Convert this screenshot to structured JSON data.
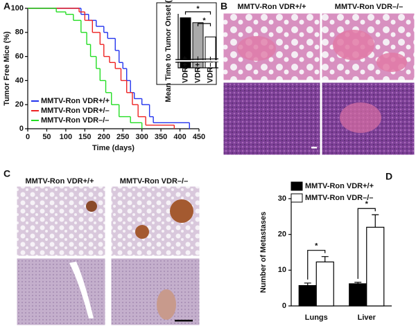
{
  "figure": {
    "panel_labels": [
      "A",
      "B",
      "C",
      "D"
    ],
    "panel_b_titles": [
      "MMTV-Ron VDR+/+",
      "MMTV-Ron VDR–/–"
    ],
    "panel_c_titles": [
      "MMTV-Ron VDR+/+",
      "MMTV-Ron VDR–/–"
    ]
  },
  "chart_data": [
    {
      "type": "line",
      "drawstyle": "steps-post",
      "xlabel": "Time (days)",
      "ylabel": "Tumor Free Mice (%)",
      "xlim": [
        0,
        450
      ],
      "ylim": [
        0,
        100
      ],
      "xticks": [
        0,
        50,
        100,
        150,
        200,
        250,
        300,
        350,
        400,
        450
      ],
      "yticks": [
        0,
        20,
        40,
        60,
        80,
        100
      ],
      "legend": "lower left",
      "series": [
        {
          "name": "MMTV-Ron VDR+/+",
          "color": "#2233ee",
          "x": [
            0,
            140,
            160,
            180,
            200,
            210,
            230,
            240,
            250,
            260,
            270,
            280,
            300,
            320,
            330,
            425
          ],
          "values": [
            100,
            95,
            90,
            85,
            80,
            75,
            65,
            55,
            50,
            40,
            30,
            25,
            20,
            10,
            5,
            0
          ]
        },
        {
          "name": "MMTV-Ron VDR+/–",
          "color": "#ee2222",
          "x": [
            0,
            135,
            150,
            170,
            190,
            200,
            215,
            230,
            245,
            260,
            275,
            290,
            310,
            385
          ],
          "values": [
            100,
            97,
            90,
            80,
            70,
            60,
            55,
            50,
            40,
            30,
            20,
            10,
            3,
            0
          ]
        },
        {
          "name": "MMTV-Ron VDR–/–",
          "color": "#22dd22",
          "x": [
            0,
            75,
            100,
            120,
            140,
            155,
            165,
            180,
            190,
            205,
            220,
            240,
            270,
            300
          ],
          "values": [
            100,
            97,
            95,
            90,
            80,
            70,
            60,
            50,
            40,
            30,
            20,
            10,
            5,
            0
          ]
        }
      ]
    },
    {
      "type": "bar",
      "ylabel": "Mean Time to Tumor Onset (Days)",
      "categories": [
        "VDR+/+",
        "VDR+/–",
        "VDR–/–"
      ],
      "values": [
        242,
        232,
        203
      ],
      "colors": [
        "#000000",
        "#aaaaaa",
        "#ffffff"
      ],
      "ylim": [
        140,
        250
      ],
      "annotations": [
        "*",
        "*"
      ]
    },
    {
      "type": "bar",
      "ylabel": "Number of Metastases",
      "categories": [
        "Lungs",
        "Liver"
      ],
      "ylim": [
        0,
        30
      ],
      "yticks": [
        0,
        10,
        20,
        30
      ],
      "legend": "upper left",
      "annotations": [
        "*",
        "*"
      ],
      "series": [
        {
          "name": "MMTV-Ron VDR+/+",
          "color": "#000000",
          "values": [
            5.7,
            6.2
          ],
          "errors": [
            0.7,
            0.4
          ]
        },
        {
          "name": "MMTV-Ron VDR–/–",
          "color": "#ffffff",
          "values": [
            12.3,
            22
          ],
          "errors": [
            1.5,
            3.5
          ]
        }
      ]
    }
  ]
}
